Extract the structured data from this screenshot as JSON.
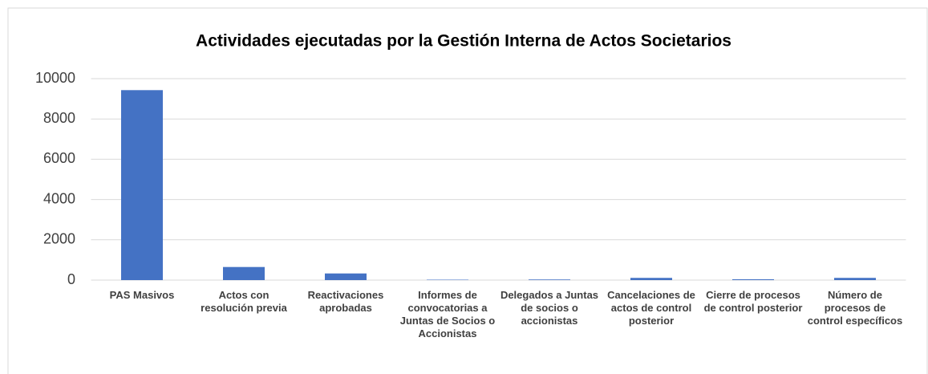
{
  "chart_data": {
    "type": "bar",
    "title": "Actividades ejecutadas por la Gestión Interna de Actos Societarios",
    "categories": [
      "PAS Masivos",
      "Actos con resolución previa",
      "Reactivaciones aprobadas",
      "Informes de convocatorias a Juntas de Socios o Accionistas",
      "Delegados a Juntas de socios o accionistas",
      "Cancelaciones de actos de control posterior",
      "Cierre de procesos de control posterior",
      "Número de procesos de control específicos"
    ],
    "values": [
      9430,
      650,
      330,
      20,
      30,
      110,
      40,
      110
    ],
    "color": "#4472c4",
    "ylim": [
      0,
      10000
    ],
    "yticks": [
      0,
      2000,
      4000,
      6000,
      8000,
      10000
    ],
    "grid": true
  }
}
